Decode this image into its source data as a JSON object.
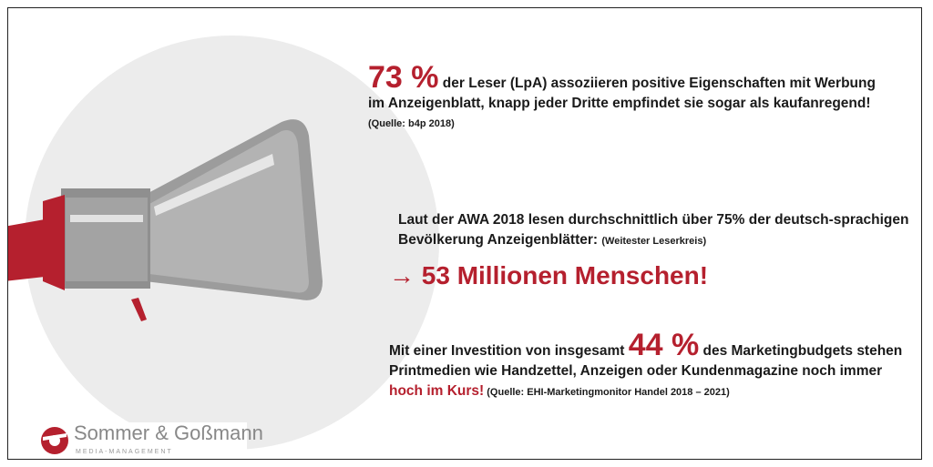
{
  "block1": {
    "highlight": "73 %",
    "line1": " der Leser (LpA) assoziieren positive Eigenschaften mit Werbung",
    "line2": "im Anzeigenblatt, knapp jeder Dritte empfindet sie sogar als kaufanregend!",
    "source": "(Quelle: b4p 2018)"
  },
  "block2": {
    "line1": "Laut der AWA 2018 lesen durchschnittlich über 75% der deutsch-sprachigen",
    "line2": "Bevölkerung Anzeigenblätter: ",
    "note": "(Weitester Leserkreis)",
    "headline": "→ 53 Millionen Menschen!"
  },
  "block3": {
    "line1_pre": "Mit einer Investition von insgesamt ",
    "highlight": "44 %",
    "line1_post": " des Marketingbudgets stehen",
    "line2": "Printmedien wie Handzettel, Anzeigen oder Kundenmagazine noch immer",
    "red_text": "hoch im Kurs!",
    "source": " (Quelle: EHI-Marketingmonitor Handel 2018 – 2021)"
  },
  "logo": {
    "name": "Sommer & Goßmann",
    "subtitle": "MEDIA-MANAGEMENT"
  },
  "colors": {
    "accent": "#b5202e",
    "circle": "#ececec"
  }
}
